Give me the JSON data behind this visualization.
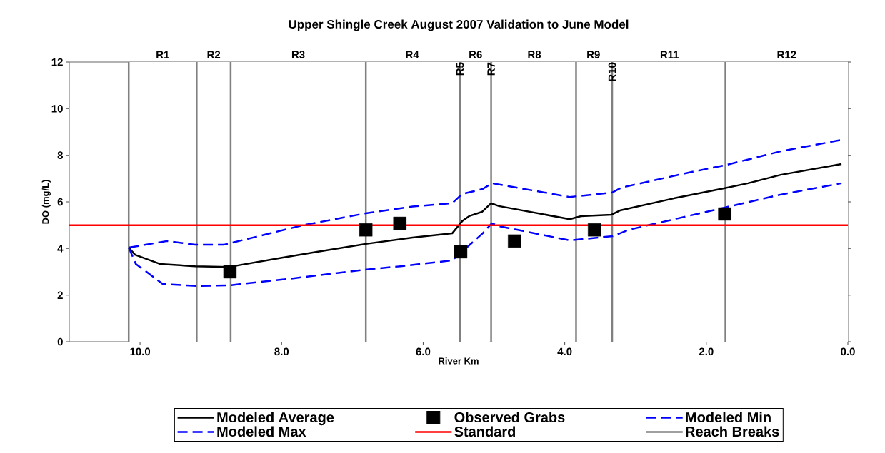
{
  "chart_data": {
    "type": "line",
    "title": "Upper Shingle Creek August 2007 Validation to June Model",
    "xlabel": "River Km",
    "ylabel": "DO (mg/L)",
    "xlim": [
      11,
      0
    ],
    "ylim": [
      0,
      12
    ],
    "xticks": [
      {
        "value": 10,
        "label": "10.0"
      },
      {
        "value": 8,
        "label": "8.0"
      },
      {
        "value": 6,
        "label": "6.0"
      },
      {
        "value": 4,
        "label": "4.0"
      },
      {
        "value": 2,
        "label": "2.0"
      },
      {
        "value": 0,
        "label": "0.0"
      }
    ],
    "yticks": [
      0,
      2,
      4,
      6,
      8,
      10,
      12
    ],
    "tick_labels": true,
    "grid": false,
    "legend": "bottom",
    "series": [
      {
        "name": "Modeled Average",
        "color": "#000000",
        "line_style": "solid",
        "x": [
          10.16,
          10.07,
          9.72,
          9.22,
          8.74,
          8.04,
          7.5,
          6.83,
          6.15,
          5.59,
          5.45,
          5.35,
          5.17,
          5.04,
          4.93,
          3.93,
          3.77,
          3.34,
          3.22,
          2.46,
          1.75,
          1.41,
          0.95,
          0.09
        ],
        "values": [
          4.04,
          3.73,
          3.34,
          3.24,
          3.21,
          3.58,
          3.86,
          4.19,
          4.47,
          4.65,
          5.17,
          5.39,
          5.57,
          5.94,
          5.82,
          5.26,
          5.39,
          5.45,
          5.63,
          6.15,
          6.58,
          6.8,
          7.16,
          7.62
        ]
      },
      {
        "name": "Observed Grabs",
        "type": "scatter",
        "marker": "square",
        "color": "#000000",
        "x": [
          8.73,
          6.81,
          6.33,
          5.47,
          4.71,
          3.58,
          1.74
        ],
        "values": [
          3.0,
          4.8,
          5.08,
          3.86,
          4.32,
          4.8,
          5.48
        ]
      },
      {
        "name": "Modeled Min",
        "color": "#0000ff",
        "line_style": "dashed",
        "x": [
          10.16,
          10.06,
          9.68,
          9.18,
          8.74,
          7.84,
          6.83,
          6.32,
          5.59,
          5.16,
          5.03,
          4.93,
          3.93,
          3.32,
          3.1,
          2.79,
          0.95,
          0.09
        ],
        "values": [
          4.04,
          3.34,
          2.48,
          2.39,
          2.42,
          2.72,
          3.09,
          3.24,
          3.49,
          4.65,
          5.08,
          4.96,
          4.35,
          4.53,
          4.8,
          5.02,
          6.31,
          6.8
        ]
      },
      {
        "name": "Modeled Max",
        "color": "#0000ff",
        "line_style": "dashed",
        "x": [
          10.16,
          9.62,
          9.22,
          8.82,
          7.71,
          6.83,
          6.15,
          5.59,
          5.45,
          5.16,
          5.03,
          3.93,
          3.33,
          3.2,
          2.26,
          1.71,
          0.95,
          0.09
        ],
        "values": [
          4.04,
          4.32,
          4.16,
          4.16,
          4.99,
          5.5,
          5.8,
          5.94,
          6.34,
          6.55,
          6.8,
          6.21,
          6.4,
          6.61,
          7.25,
          7.59,
          8.17,
          8.66
        ]
      },
      {
        "name": "Standard",
        "color": "#ff0000",
        "line_style": "solid",
        "x": [
          11,
          0
        ],
        "values": [
          5,
          5
        ]
      }
    ],
    "ref_lines": [
      {
        "axis": "x",
        "value": 10.16,
        "color": "#808080",
        "label": "Reach Breaks"
      },
      {
        "axis": "x",
        "value": 9.2,
        "color": "#808080"
      },
      {
        "axis": "x",
        "value": 8.72,
        "color": "#808080"
      },
      {
        "axis": "x",
        "value": 6.81,
        "color": "#808080"
      },
      {
        "axis": "x",
        "value": 5.48,
        "color": "#808080"
      },
      {
        "axis": "x",
        "value": 5.04,
        "color": "#808080"
      },
      {
        "axis": "x",
        "value": 3.84,
        "color": "#808080"
      },
      {
        "axis": "x",
        "value": 3.33,
        "color": "#808080"
      },
      {
        "axis": "x",
        "value": 1.73,
        "color": "#808080"
      }
    ],
    "bands": [
      {
        "axis": "x",
        "from": 10.16,
        "to": 9.2,
        "label": "R1",
        "color": "#ffffff"
      },
      {
        "axis": "x",
        "from": 9.2,
        "to": 8.72,
        "label": "R2",
        "color": "#ffffff"
      },
      {
        "axis": "x",
        "from": 8.72,
        "to": 6.81,
        "label": "R3",
        "color": "#ffffff"
      },
      {
        "axis": "x",
        "from": 6.81,
        "to": 5.5,
        "label": "R4",
        "color": "#ffffff"
      },
      {
        "axis": "x",
        "from": 5.5,
        "to": 5.46,
        "label": "R5",
        "color": "#ffffff"
      },
      {
        "axis": "x",
        "from": 5.46,
        "to": 5.06,
        "label": "R6",
        "color": "#ffffff"
      },
      {
        "axis": "x",
        "from": 5.06,
        "to": 5.02,
        "label": "R7",
        "color": "#ffffff"
      },
      {
        "axis": "x",
        "from": 5.02,
        "to": 3.84,
        "label": "R8",
        "color": "#ffffff"
      },
      {
        "axis": "x",
        "from": 3.84,
        "to": 3.35,
        "label": "R9",
        "color": "#ffffff"
      },
      {
        "axis": "x",
        "from": 3.35,
        "to": 3.31,
        "label": "R10",
        "color": "#ffffff"
      },
      {
        "axis": "x",
        "from": 3.31,
        "to": 1.73,
        "label": "R11",
        "color": "#ffffff"
      },
      {
        "axis": "x",
        "from": 1.73,
        "to": 0,
        "label": "R12",
        "color": "#ffffff"
      }
    ]
  }
}
